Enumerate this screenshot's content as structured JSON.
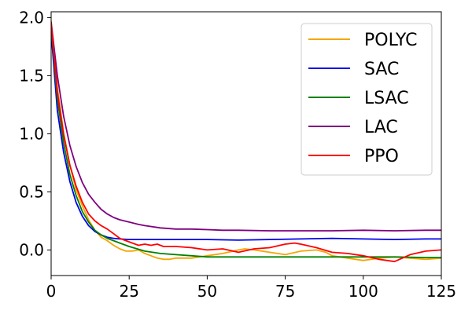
{
  "chart_data": {
    "type": "line",
    "title": "",
    "xlabel": "",
    "ylabel": "",
    "xlim": [
      0,
      125
    ],
    "ylim": [
      -0.22,
      2.05
    ],
    "xticks": [
      0,
      25,
      50,
      75,
      100,
      125
    ],
    "yticks": [
      -0.0,
      0.5,
      1.0,
      1.5,
      2.0
    ],
    "xtick_labels": [
      "0",
      "25",
      "50",
      "75",
      "100",
      "125"
    ],
    "ytick_labels": [
      "0.0",
      "0.5",
      "1.0",
      "1.5",
      "2.0"
    ],
    "grid": false,
    "legend_position": "top-right",
    "series": [
      {
        "name": "POLYC",
        "color": "#f5a500",
        "x": [
          0,
          2,
          4,
          6,
          8,
          10,
          12,
          14,
          16,
          18,
          20,
          22,
          24,
          26,
          28,
          30,
          32,
          34,
          36,
          38,
          40,
          45,
          50,
          55,
          60,
          62,
          65,
          70,
          75,
          80,
          85,
          88,
          90,
          95,
          100,
          105,
          110,
          115,
          120,
          125
        ],
        "y": [
          1.97,
          1.4,
          1.01,
          0.73,
          0.52,
          0.38,
          0.26,
          0.17,
          0.11,
          0.08,
          0.04,
          0.01,
          -0.01,
          -0.01,
          0.0,
          -0.03,
          -0.05,
          -0.07,
          -0.08,
          -0.08,
          -0.07,
          -0.07,
          -0.05,
          -0.03,
          0.0,
          0.01,
          0.0,
          -0.02,
          -0.04,
          -0.01,
          0.0,
          -0.02,
          -0.05,
          -0.07,
          -0.09,
          -0.07,
          -0.06,
          -0.07,
          -0.08,
          -0.07
        ]
      },
      {
        "name": "SAC",
        "color": "#0000ee",
        "x": [
          0,
          2,
          4,
          6,
          8,
          10,
          12,
          14,
          16,
          18,
          20,
          22,
          25,
          30,
          40,
          50,
          60,
          70,
          80,
          90,
          100,
          110,
          120,
          125
        ],
        "y": [
          1.87,
          1.2,
          0.84,
          0.59,
          0.41,
          0.29,
          0.21,
          0.16,
          0.13,
          0.11,
          0.1,
          0.095,
          0.09,
          0.09,
          0.09,
          0.09,
          0.085,
          0.09,
          0.095,
          0.1,
          0.095,
          0.09,
          0.095,
          0.095
        ]
      },
      {
        "name": "LSAC",
        "color": "#008000",
        "x": [
          0,
          2,
          4,
          6,
          8,
          10,
          12,
          14,
          16,
          18,
          20,
          22,
          25,
          30,
          35,
          40,
          45,
          50,
          60,
          70,
          80,
          90,
          100,
          110,
          120,
          125
        ],
        "y": [
          1.93,
          1.3,
          0.92,
          0.65,
          0.47,
          0.33,
          0.24,
          0.17,
          0.13,
          0.1,
          0.08,
          0.06,
          0.03,
          -0.01,
          -0.03,
          -0.04,
          -0.05,
          -0.06,
          -0.06,
          -0.06,
          -0.06,
          -0.06,
          -0.06,
          -0.06,
          -0.065,
          -0.065
        ]
      },
      {
        "name": "LAC",
        "color": "#800080",
        "x": [
          0,
          2,
          4,
          6,
          8,
          10,
          12,
          14,
          16,
          18,
          20,
          22,
          25,
          28,
          30,
          35,
          40,
          45,
          50,
          55,
          60,
          70,
          80,
          90,
          100,
          110,
          120,
          125
        ],
        "y": [
          1.96,
          1.5,
          1.15,
          0.9,
          0.72,
          0.58,
          0.48,
          0.41,
          0.35,
          0.31,
          0.28,
          0.26,
          0.24,
          0.22,
          0.21,
          0.19,
          0.18,
          0.18,
          0.175,
          0.17,
          0.17,
          0.165,
          0.165,
          0.165,
          0.17,
          0.165,
          0.17,
          0.17
        ]
      },
      {
        "name": "PPO",
        "color": "#ff0000",
        "x": [
          0,
          2,
          4,
          6,
          8,
          10,
          12,
          14,
          16,
          18,
          20,
          22,
          24,
          26,
          28,
          30,
          32,
          34,
          36,
          40,
          45,
          50,
          55,
          60,
          65,
          70,
          75,
          78,
          80,
          85,
          90,
          95,
          100,
          105,
          110,
          115,
          120,
          125
        ],
        "y": [
          1.95,
          1.36,
          0.99,
          0.73,
          0.55,
          0.41,
          0.31,
          0.25,
          0.21,
          0.18,
          0.14,
          0.1,
          0.08,
          0.06,
          0.04,
          0.05,
          0.04,
          0.05,
          0.03,
          0.03,
          0.02,
          0.0,
          0.01,
          -0.02,
          0.01,
          0.02,
          0.05,
          0.06,
          0.05,
          0.02,
          -0.02,
          -0.03,
          -0.05,
          -0.08,
          -0.1,
          -0.04,
          -0.01,
          0.0
        ]
      }
    ]
  }
}
